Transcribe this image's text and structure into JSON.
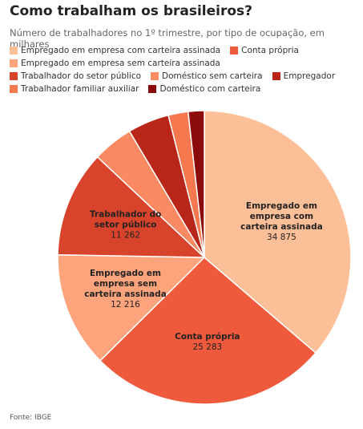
{
  "chart_data": {
    "type": "pie",
    "title": "Como trabalham os brasileiros?",
    "subtitle": "Número de trabalhadores no 1º trimestre, por tipo de ocupação, em milhares",
    "categories": [
      "Empregado em empresa com carteira assinada",
      "Conta própria",
      "Empregado em empresa sem carteira assinada",
      "Trabalhador do setor público",
      "Doméstico sem carteira",
      "Empregador",
      "Trabalhador familiar auxiliar",
      "Doméstico com carteira"
    ],
    "values": [
      34875,
      25283,
      12216,
      11262,
      4300,
      4400,
      2100,
      1700
    ],
    "value_labels": [
      "34 875",
      "25 283",
      "12 216",
      "11 262",
      null,
      null,
      null,
      null
    ],
    "colors": [
      "#fdbf97",
      "#ef5a3c",
      "#fda47c",
      "#d8432b",
      "#fb8a63",
      "#b8261a",
      "#f6784f",
      "#8b0a0a"
    ],
    "source": "Fonte: IBGE"
  }
}
